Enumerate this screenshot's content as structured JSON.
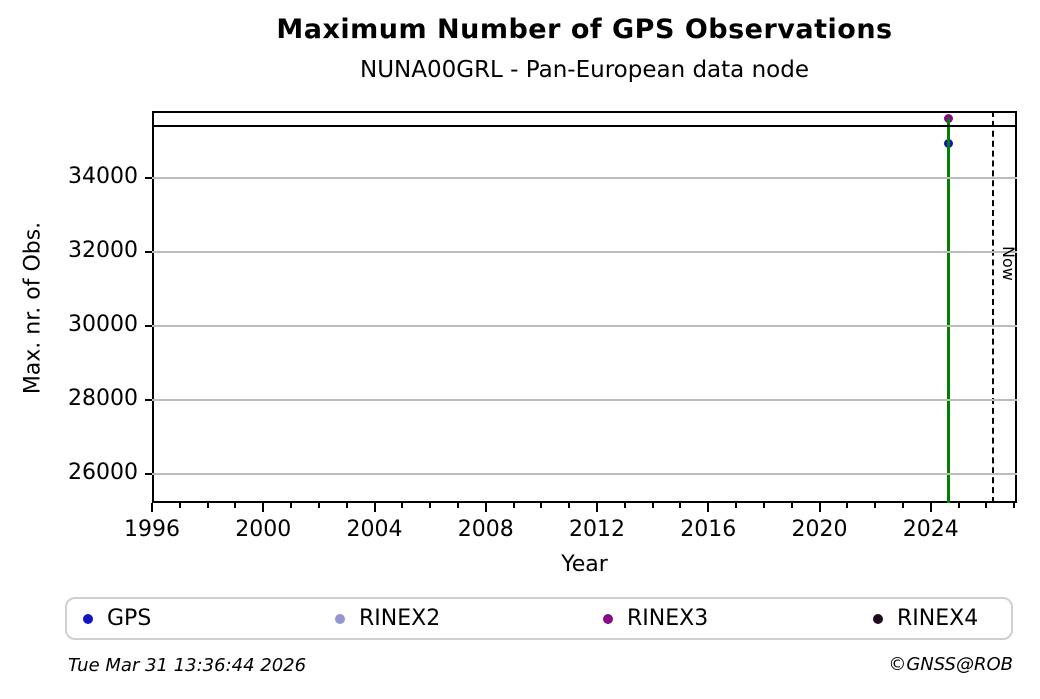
{
  "title": "Maximum Number of GPS Observations",
  "subtitle": "NUNA00GRL - Pan-European data node",
  "footer": {
    "timestamp": "Tue Mar 31 13:36:44 2026",
    "credit": "©GNSS@ROB"
  },
  "chart_data": {
    "type": "scatter",
    "title": "Maximum Number of GPS Observations",
    "subtitle": "NUNA00GRL - Pan-European data node",
    "xlabel": "Year",
    "ylabel": "Max. nr. of Obs.",
    "xlim": [
      1996,
      2027.1
    ],
    "ylim": [
      25230,
      35810
    ],
    "x_major_ticks": [
      1996,
      2000,
      2004,
      2008,
      2012,
      2016,
      2020,
      2024
    ],
    "x_minor_tick_step": 1,
    "y_ticks": [
      26000,
      28000,
      30000,
      32000,
      34000
    ],
    "grid": {
      "horizontal": true,
      "color": "#bcbcbc"
    },
    "series": [
      {
        "name": "GPS",
        "color": "#1414c0",
        "points": [
          {
            "x": 2024.7,
            "y": 34940
          }
        ]
      },
      {
        "name": "RINEX2",
        "color": "#9494ce",
        "points": []
      },
      {
        "name": "RINEX3",
        "color": "#870b87",
        "points": [
          {
            "x": 2024.7,
            "y": 35610
          }
        ]
      },
      {
        "name": "RINEX4",
        "color": "#210a21",
        "points": []
      }
    ],
    "annotations": {
      "now_line": {
        "x": 2026.25,
        "label": "Now",
        "style": "dashed",
        "color": "#000000"
      },
      "reference_line": {
        "y": 35410,
        "color": "#000000"
      },
      "event_line": {
        "x": 2024.7,
        "y_from": 25230,
        "y_to": 35610,
        "solid_color": "#008000",
        "dash_color": "#d40000"
      }
    },
    "legend": {
      "position": "bottom",
      "entries": [
        "GPS",
        "RINEX2",
        "RINEX3",
        "RINEX4"
      ]
    }
  }
}
